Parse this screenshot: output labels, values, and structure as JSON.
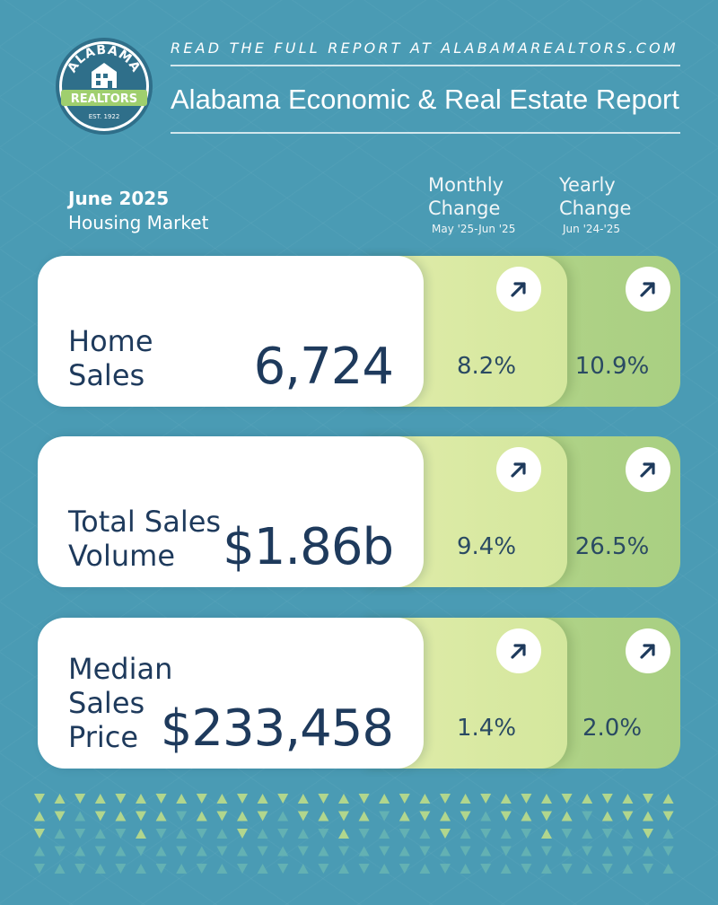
{
  "header": {
    "logo_top_text": "ALABAMA",
    "logo_banner_text": "REALTORS",
    "logo_est_text": "EST. 1922",
    "tagline": "READ THE FULL REPORT AT ALABAMAREALTORS.COM",
    "title": "Alabama Economic & Real Estate Report"
  },
  "period": {
    "month": "June 2025",
    "subtitle": "Housing Market"
  },
  "columns": {
    "monthly": {
      "line1": "Monthly",
      "line2": "Change",
      "range": "May '25-Jun '25"
    },
    "yearly": {
      "line1": "Yearly",
      "line2": "Change",
      "range": "Jun '24-'25"
    }
  },
  "metrics": [
    {
      "label_lines": [
        "Home",
        "Sales"
      ],
      "value": "6,724",
      "monthly": "8.2%",
      "yearly": "10.9%",
      "monthly_trend": "up",
      "yearly_trend": "up"
    },
    {
      "label_lines": [
        "Total Sales",
        "Volume"
      ],
      "value": "$1.86b",
      "monthly": "9.4%",
      "yearly": "26.5%",
      "monthly_trend": "up",
      "yearly_trend": "up"
    },
    {
      "label_lines": [
        "Median",
        "Sales",
        "Price"
      ],
      "value": "$233,458",
      "monthly": "1.4%",
      "yearly": "2.0%",
      "monthly_trend": "up",
      "yearly_trend": "up"
    }
  ],
  "colors": {
    "background": "#4a9bb4",
    "navy_text": "#1e3a5c",
    "monthly_panel": "#d9eaa3",
    "yearly_panel": "#b1d387",
    "triangle_light": "#b6d98b",
    "triangle_teal": "#64b2b3"
  },
  "icons": {
    "trend_icon": "arrow-up-right-icon"
  }
}
